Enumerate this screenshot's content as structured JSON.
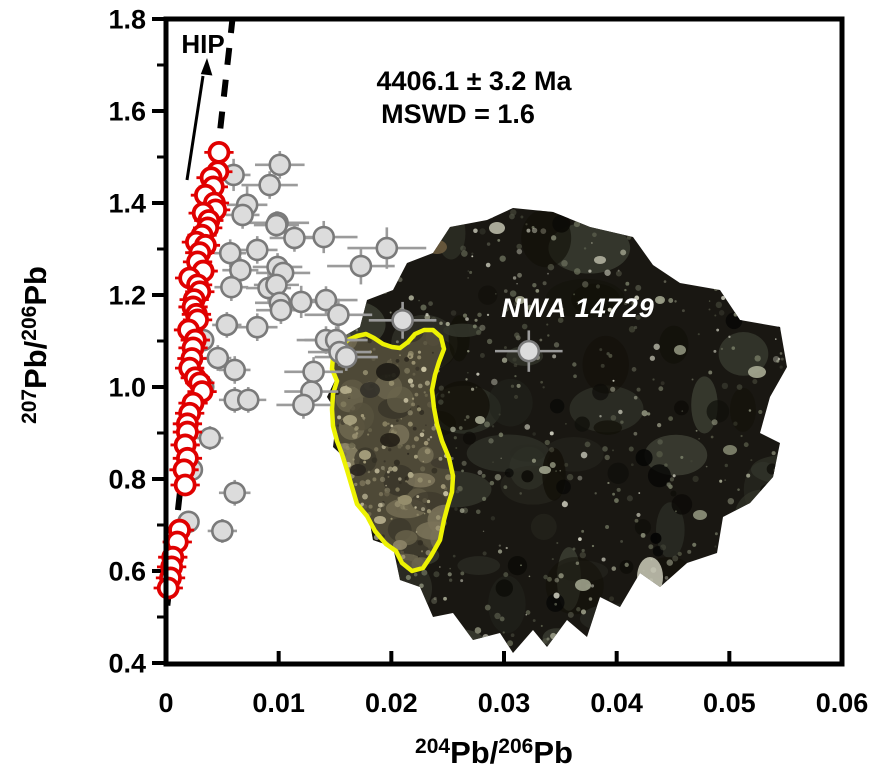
{
  "figure": {
    "age_annotation": "4406.1 ± 3.2 Ma",
    "mswd_annotation": "MSWD = 1.6",
    "hip_label": "HIP",
    "sample_label": "NWA 14729"
  },
  "colors": {
    "red_marker": "#e00000",
    "red_fill": "#ffffff",
    "gray_fill": "#dcdcdc",
    "gray_edge": "#7a7a7a",
    "gray_errbar": "#9b9b9b",
    "isochron_line": "#000000",
    "yellow_outline": "#edf203",
    "rock_base": "#191712",
    "text": "#000000"
  },
  "chart_data": {
    "type": "scatter",
    "title": "4406.1 ± 3.2 Ma",
    "subtitle": "MSWD = 1.6",
    "xlabel": {
      "sup1": "204",
      "mid": "Pb/",
      "sup2": "206",
      "end": "Pb"
    },
    "ylabel": {
      "sup1": "207",
      "mid": "Pb/",
      "sup2": "206",
      "end": "Pb"
    },
    "xlim": [
      0,
      0.06
    ],
    "ylim": [
      0.4,
      1.8
    ],
    "x_ticks": [
      0,
      0.01,
      0.02,
      0.03,
      0.04,
      0.05,
      0.06
    ],
    "x_tick_labels": [
      "0",
      "0.01",
      "0.02",
      "0.03",
      "0.04",
      "0.05",
      "0.06"
    ],
    "y_ticks": [
      0.4,
      0.6,
      0.8,
      1.0,
      1.2,
      1.4,
      1.6,
      1.8
    ],
    "y_tick_labels": [
      "0.4",
      "0.6",
      "0.8",
      "1.0",
      "1.2",
      "1.4",
      "1.6",
      "1.8"
    ],
    "y_minor_step": 0.1,
    "grid": false,
    "legend": "none",
    "isochron_line": {
      "style": "dashed",
      "x1": 0.00012,
      "y1": 0.525,
      "x2": 0.0059,
      "y2": 1.8
    },
    "annotations": [
      {
        "text": "HIP",
        "x": 0.0033,
        "y": 1.75,
        "arrow_from": [
          0.0019,
          1.47
        ],
        "arrow_to": [
          0.0036,
          1.715
        ]
      },
      {
        "text": "NWA 14729",
        "x": 0.0366,
        "y": 1.17
      }
    ],
    "series": [
      {
        "name": "red-open-circles",
        "marker": "open-circle",
        "color": "#e00000",
        "xerr": 0.0013,
        "yerr": 0.014,
        "points": [
          [
            0.0047,
            1.51
          ],
          [
            0.0046,
            1.468
          ],
          [
            0.004,
            1.455
          ],
          [
            0.0042,
            1.435
          ],
          [
            0.0035,
            1.417
          ],
          [
            0.0043,
            1.4
          ],
          [
            0.0044,
            1.385
          ],
          [
            0.0033,
            1.378
          ],
          [
            0.0038,
            1.362
          ],
          [
            0.0037,
            1.346
          ],
          [
            0.0032,
            1.33
          ],
          [
            0.0027,
            1.315
          ],
          [
            0.0035,
            1.308
          ],
          [
            0.003,
            1.292
          ],
          [
            0.0028,
            1.272
          ],
          [
            0.0033,
            1.252
          ],
          [
            0.0021,
            1.237
          ],
          [
            0.0028,
            1.222
          ],
          [
            0.003,
            1.207
          ],
          [
            0.0025,
            1.19
          ],
          [
            0.0024,
            1.174
          ],
          [
            0.0027,
            1.158
          ],
          [
            0.0028,
            1.146
          ],
          [
            0.002,
            1.124
          ],
          [
            0.0026,
            1.102
          ],
          [
            0.0024,
            1.085
          ],
          [
            0.0023,
            1.062
          ],
          [
            0.0021,
            1.041
          ],
          [
            0.0026,
            1.02
          ],
          [
            0.003,
            1.009
          ],
          [
            0.0032,
            0.99
          ],
          [
            0.0024,
            0.965
          ],
          [
            0.0021,
            0.943
          ],
          [
            0.0019,
            0.92
          ],
          [
            0.0019,
            0.902
          ],
          [
            0.0017,
            0.874
          ],
          [
            0.0019,
            0.845
          ],
          [
            0.0016,
            0.82
          ],
          [
            0.0017,
            0.787
          ],
          [
            0.0012,
            0.689
          ],
          [
            0.001,
            0.663
          ],
          [
            0.0006,
            0.63
          ],
          [
            0.0005,
            0.609
          ],
          [
            0.0004,
            0.585
          ],
          [
            0.0002,
            0.563
          ]
        ]
      },
      {
        "name": "gray-filled-circles",
        "marker": "filled-circle",
        "color": "#dcdcdc",
        "edge": "#7a7a7a",
        "points": [
          [
            0.0101,
            1.483,
            0.0022,
            0.03
          ],
          [
            0.006,
            1.461,
            0.0015,
            0.035
          ],
          [
            0.0092,
            1.439,
            0.0025,
            0.03
          ],
          [
            0.0072,
            1.396,
            0.0018,
            0.04
          ],
          [
            0.0068,
            1.374,
            0.0015,
            0.03
          ],
          [
            0.0099,
            1.357,
            0.0028,
            0.025
          ],
          [
            0.0098,
            1.352,
            0.002,
            0.03
          ],
          [
            0.014,
            1.326,
            0.003,
            0.035
          ],
          [
            0.0114,
            1.324,
            0.0022,
            0.03
          ],
          [
            0.0196,
            1.302,
            0.0035,
            0.045
          ],
          [
            0.0081,
            1.298,
            0.0018,
            0.03
          ],
          [
            0.0057,
            1.291,
            0.0014,
            0.03
          ],
          [
            0.0173,
            1.263,
            0.003,
            0.04
          ],
          [
            0.0099,
            1.261,
            0.0022,
            0.03
          ],
          [
            0.0066,
            1.254,
            0.0016,
            0.028
          ],
          [
            0.0104,
            1.248,
            0.0024,
            0.03
          ],
          [
            0.0058,
            1.217,
            0.0015,
            0.03
          ],
          [
            0.0091,
            1.215,
            0.002,
            0.032
          ],
          [
            0.0098,
            1.222,
            0.002,
            0.03
          ],
          [
            0.012,
            1.185,
            0.0026,
            0.035
          ],
          [
            0.0142,
            1.189,
            0.0028,
            0.03
          ],
          [
            0.0101,
            1.183,
            0.0022,
            0.028
          ],
          [
            0.0102,
            1.167,
            0.0022,
            0.03
          ],
          [
            0.0153,
            1.157,
            0.003,
            0.035
          ],
          [
            0.0054,
            1.135,
            0.0013,
            0.028
          ],
          [
            0.0081,
            1.13,
            0.0018,
            0.03
          ],
          [
            0.021,
            1.145,
            0.003,
            0.04
          ],
          [
            0.0142,
            1.102,
            0.0026,
            0.03
          ],
          [
            0.0151,
            1.102,
            0.0028,
            0.03
          ],
          [
            0.0033,
            1.102,
            0.001,
            0.025
          ],
          [
            0.0154,
            1.076,
            0.0028,
            0.03
          ],
          [
            0.0322,
            1.078,
            0.003,
            0.045
          ],
          [
            0.016,
            1.065,
            0.0028,
            0.03
          ],
          [
            0.0046,
            1.063,
            0.0012,
            0.028
          ],
          [
            0.0061,
            1.037,
            0.0014,
            0.03
          ],
          [
            0.0131,
            1.033,
            0.0026,
            0.032
          ],
          [
            0.0033,
            1.0,
            0.001,
            0.026
          ],
          [
            0.0129,
            0.99,
            0.0024,
            0.03
          ],
          [
            0.0061,
            0.972,
            0.0014,
            0.028
          ],
          [
            0.0073,
            0.972,
            0.0016,
            0.028
          ],
          [
            0.0122,
            0.961,
            0.0024,
            0.03
          ],
          [
            0.0039,
            0.889,
            0.0012,
            0.026
          ],
          [
            0.0023,
            0.82,
            0.0008,
            0.024
          ],
          [
            0.0061,
            0.77,
            0.0014,
            0.028
          ],
          [
            0.002,
            0.707,
            0.0008,
            0.022
          ],
          [
            0.005,
            0.687,
            0.0013,
            0.026
          ]
        ]
      }
    ]
  }
}
